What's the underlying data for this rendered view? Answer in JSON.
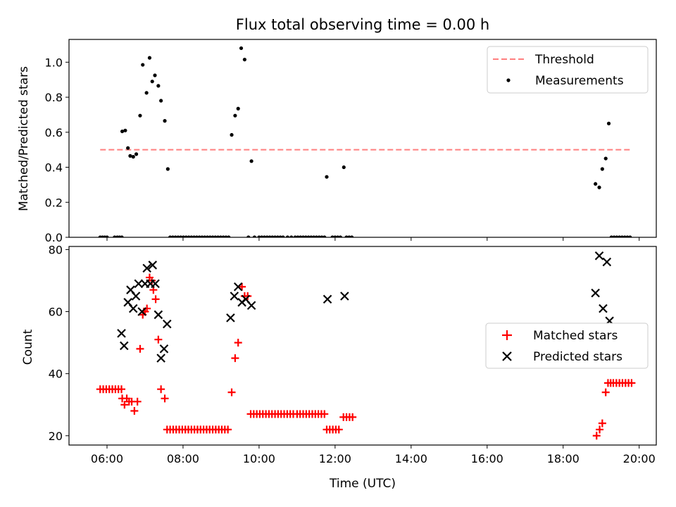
{
  "chart_data": [
    {
      "type": "scatter",
      "title": "Flux total observing time = 0.00 h",
      "xlabel": "",
      "ylabel": "Matched/Predicted stars",
      "xlim": [
        5.0,
        20.45
      ],
      "ylim": [
        0,
        1.13
      ],
      "x_ticks": [
        6,
        8,
        10,
        12,
        14,
        16,
        18,
        20
      ],
      "y_ticks": [
        0.0,
        0.2,
        0.4,
        0.6,
        0.8,
        1.0
      ],
      "y_tick_labels": [
        "0.0",
        "0.2",
        "0.4",
        "0.6",
        "0.8",
        "1.0"
      ],
      "legend_position": "top-right",
      "legend": [
        "Threshold",
        "Measurements"
      ],
      "threshold": {
        "name": "Threshold",
        "y": 0.5,
        "x_range": [
          5.82,
          19.82
        ],
        "color": "#ff7f7f",
        "style": "dashed"
      },
      "series": [
        {
          "name": "Measurements",
          "marker": "dot",
          "color": "#000000",
          "points": [
            [
              5.82,
              0
            ],
            [
              5.88,
              0
            ],
            [
              5.94,
              0
            ],
            [
              6.0,
              0
            ],
            [
              6.2,
              0
            ],
            [
              6.27,
              0
            ],
            [
              6.33,
              0
            ],
            [
              6.39,
              0
            ],
            [
              6.4,
              0.605
            ],
            [
              6.48,
              0.61
            ],
            [
              6.55,
              0.51
            ],
            [
              6.61,
              0.465
            ],
            [
              6.69,
              0.46
            ],
            [
              6.77,
              0.475
            ],
            [
              6.87,
              0.695
            ],
            [
              6.94,
              0.985
            ],
            [
              7.04,
              0.825
            ],
            [
              7.12,
              1.025
            ],
            [
              7.19,
              0.89
            ],
            [
              7.26,
              0.925
            ],
            [
              7.35,
              0.865
            ],
            [
              7.42,
              0.78
            ],
            [
              7.52,
              0.665
            ],
            [
              7.6,
              0.39
            ],
            [
              7.66,
              0
            ],
            [
              7.73,
              0
            ],
            [
              7.8,
              0
            ],
            [
              7.87,
              0
            ],
            [
              7.94,
              0
            ],
            [
              8.01,
              0
            ],
            [
              8.08,
              0
            ],
            [
              8.15,
              0
            ],
            [
              8.22,
              0
            ],
            [
              8.29,
              0
            ],
            [
              8.36,
              0
            ],
            [
              8.43,
              0
            ],
            [
              8.5,
              0
            ],
            [
              8.57,
              0
            ],
            [
              8.64,
              0
            ],
            [
              8.71,
              0
            ],
            [
              8.78,
              0
            ],
            [
              8.85,
              0
            ],
            [
              8.92,
              0
            ],
            [
              8.99,
              0
            ],
            [
              9.06,
              0
            ],
            [
              9.13,
              0
            ],
            [
              9.2,
              0
            ],
            [
              9.28,
              0.585
            ],
            [
              9.37,
              0.695
            ],
            [
              9.45,
              0.735
            ],
            [
              9.53,
              1.08
            ],
            [
              9.62,
              1.015
            ],
            [
              9.8,
              0.435
            ],
            [
              9.72,
              0
            ],
            [
              9.88,
              0
            ],
            [
              10.0,
              0
            ],
            [
              10.07,
              0
            ],
            [
              10.14,
              0
            ],
            [
              10.21,
              0
            ],
            [
              10.28,
              0
            ],
            [
              10.35,
              0
            ],
            [
              10.42,
              0
            ],
            [
              10.49,
              0
            ],
            [
              10.56,
              0
            ],
            [
              10.63,
              0
            ],
            [
              10.75,
              0
            ],
            [
              10.85,
              0
            ],
            [
              10.95,
              0
            ],
            [
              11.02,
              0
            ],
            [
              11.09,
              0
            ],
            [
              11.16,
              0
            ],
            [
              11.23,
              0
            ],
            [
              11.3,
              0
            ],
            [
              11.37,
              0
            ],
            [
              11.44,
              0
            ],
            [
              11.51,
              0
            ],
            [
              11.58,
              0
            ],
            [
              11.65,
              0
            ],
            [
              11.72,
              0
            ],
            [
              11.93,
              0
            ],
            [
              12.0,
              0
            ],
            [
              12.07,
              0
            ],
            [
              12.14,
              0
            ],
            [
              12.3,
              0
            ],
            [
              12.37,
              0
            ],
            [
              12.44,
              0
            ],
            [
              11.78,
              0.345
            ],
            [
              12.23,
              0.4
            ],
            [
              18.85,
              0.305
            ],
            [
              18.95,
              0.285
            ],
            [
              19.03,
              0.39
            ],
            [
              19.12,
              0.45
            ],
            [
              19.2,
              0.65
            ],
            [
              19.27,
              0
            ],
            [
              19.34,
              0
            ],
            [
              19.41,
              0
            ],
            [
              19.48,
              0
            ],
            [
              19.55,
              0
            ],
            [
              19.62,
              0
            ],
            [
              19.69,
              0
            ],
            [
              19.76,
              0
            ]
          ]
        }
      ]
    },
    {
      "type": "scatter",
      "title": "",
      "xlabel": "Time (UTC)",
      "ylabel": "Count",
      "xlim": [
        5.0,
        20.45
      ],
      "ylim": [
        17,
        81
      ],
      "x_ticks": [
        6,
        8,
        10,
        12,
        14,
        16,
        18,
        20
      ],
      "x_tick_labels": [
        "06:00",
        "08:00",
        "10:00",
        "12:00",
        "14:00",
        "16:00",
        "18:00",
        "20:00"
      ],
      "y_ticks": [
        20,
        40,
        60,
        80
      ],
      "y_tick_labels": [
        "20",
        "40",
        "60",
        "80"
      ],
      "legend_position": "center-right",
      "legend": [
        "Matched stars",
        "Predicted stars"
      ],
      "series": [
        {
          "name": "Matched stars",
          "marker": "plus",
          "color": "#ff0000",
          "points": [
            [
              5.82,
              35
            ],
            [
              5.9,
              35
            ],
            [
              5.98,
              35
            ],
            [
              6.06,
              35
            ],
            [
              6.14,
              35
            ],
            [
              6.22,
              35
            ],
            [
              6.3,
              35
            ],
            [
              6.38,
              35
            ],
            [
              6.4,
              32
            ],
            [
              6.46,
              30
            ],
            [
              6.52,
              32
            ],
            [
              6.58,
              31
            ],
            [
              6.65,
              31
            ],
            [
              6.72,
              28
            ],
            [
              6.8,
              31
            ],
            [
              6.87,
              48
            ],
            [
              6.94,
              59
            ],
            [
              7.0,
              60
            ],
            [
              7.05,
              61
            ],
            [
              7.12,
              71
            ],
            [
              7.18,
              70
            ],
            [
              7.22,
              67
            ],
            [
              7.28,
              64
            ],
            [
              7.35,
              51
            ],
            [
              7.42,
              35
            ],
            [
              7.52,
              32
            ],
            [
              7.58,
              22
            ],
            [
              7.66,
              22
            ],
            [
              7.74,
              22
            ],
            [
              7.82,
              22
            ],
            [
              7.9,
              22
            ],
            [
              7.98,
              22
            ],
            [
              8.06,
              22
            ],
            [
              8.14,
              22
            ],
            [
              8.22,
              22
            ],
            [
              8.3,
              22
            ],
            [
              8.38,
              22
            ],
            [
              8.46,
              22
            ],
            [
              8.54,
              22
            ],
            [
              8.62,
              22
            ],
            [
              8.7,
              22
            ],
            [
              8.78,
              22
            ],
            [
              8.86,
              22
            ],
            [
              8.94,
              22
            ],
            [
              9.02,
              22
            ],
            [
              9.1,
              22
            ],
            [
              9.18,
              22
            ],
            [
              9.28,
              34
            ],
            [
              9.37,
              45
            ],
            [
              9.45,
              50
            ],
            [
              9.55,
              68
            ],
            [
              9.62,
              65
            ],
            [
              9.7,
              65
            ],
            [
              9.78,
              27
            ],
            [
              9.86,
              27
            ],
            [
              9.94,
              27
            ],
            [
              10.02,
              27
            ],
            [
              10.1,
              27
            ],
            [
              10.18,
              27
            ],
            [
              10.26,
              27
            ],
            [
              10.34,
              27
            ],
            [
              10.42,
              27
            ],
            [
              10.5,
              27
            ],
            [
              10.58,
              27
            ],
            [
              10.66,
              27
            ],
            [
              10.74,
              27
            ],
            [
              10.82,
              27
            ],
            [
              10.9,
              27
            ],
            [
              11.0,
              27
            ],
            [
              11.08,
              27
            ],
            [
              11.16,
              27
            ],
            [
              11.24,
              27
            ],
            [
              11.32,
              27
            ],
            [
              11.4,
              27
            ],
            [
              11.48,
              27
            ],
            [
              11.56,
              27
            ],
            [
              11.64,
              27
            ],
            [
              11.72,
              27
            ],
            [
              11.78,
              22
            ],
            [
              11.86,
              22
            ],
            [
              11.94,
              22
            ],
            [
              12.02,
              22
            ],
            [
              12.1,
              22
            ],
            [
              12.22,
              26
            ],
            [
              12.3,
              26
            ],
            [
              12.38,
              26
            ],
            [
              12.46,
              26
            ],
            [
              18.88,
              20
            ],
            [
              18.96,
              22
            ],
            [
              19.03,
              24
            ],
            [
              19.12,
              34
            ],
            [
              19.18,
              37
            ],
            [
              19.25,
              37
            ],
            [
              19.32,
              37
            ],
            [
              19.4,
              37
            ],
            [
              19.48,
              37
            ],
            [
              19.56,
              37
            ],
            [
              19.64,
              37
            ],
            [
              19.72,
              37
            ],
            [
              19.8,
              37
            ]
          ]
        },
        {
          "name": "Predicted stars",
          "marker": "x",
          "color": "#000000",
          "points": [
            [
              6.38,
              53
            ],
            [
              6.45,
              49
            ],
            [
              6.55,
              63
            ],
            [
              6.62,
              67
            ],
            [
              6.69,
              61
            ],
            [
              6.76,
              65
            ],
            [
              6.83,
              69
            ],
            [
              6.92,
              60
            ],
            [
              7.0,
              69
            ],
            [
              7.05,
              74
            ],
            [
              7.14,
              69
            ],
            [
              7.2,
              75
            ],
            [
              7.27,
              69
            ],
            [
              7.35,
              59
            ],
            [
              7.42,
              45
            ],
            [
              7.5,
              48
            ],
            [
              7.58,
              56
            ],
            [
              9.25,
              58
            ],
            [
              9.35,
              65
            ],
            [
              9.45,
              68
            ],
            [
              9.55,
              63
            ],
            [
              9.65,
              64
            ],
            [
              9.8,
              62
            ],
            [
              11.8,
              64
            ],
            [
              12.25,
              65
            ],
            [
              18.85,
              66
            ],
            [
              18.95,
              78
            ],
            [
              19.05,
              61
            ],
            [
              19.15,
              76
            ],
            [
              19.22,
              57
            ]
          ]
        }
      ]
    }
  ]
}
